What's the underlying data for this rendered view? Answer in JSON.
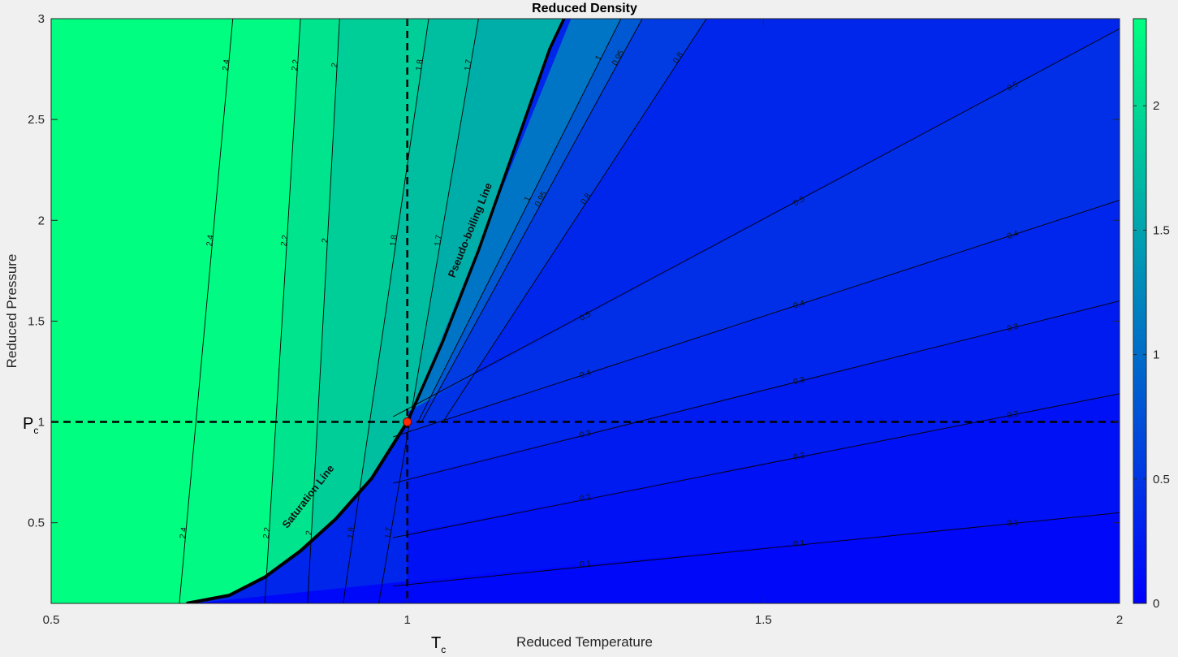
{
  "chart_data": {
    "type": "heatmap",
    "title": "Reduced Density",
    "xlabel": "Reduced Temperature",
    "ylabel": "Reduced Pressure",
    "xlim": [
      0.5,
      2
    ],
    "ylim": [
      0.1,
      3
    ],
    "x_ticks": [
      "0.5",
      "1",
      "1.5",
      "2"
    ],
    "y_ticks": [
      "0.5",
      "1",
      "1.5",
      "2",
      "2.5",
      "3"
    ],
    "colorbar": {
      "ticks": [
        "0",
        "0.5",
        "1",
        "1.5",
        "2"
      ],
      "range": [
        0,
        2.35
      ],
      "colormap": [
        "#0000ff",
        "#00ff80"
      ]
    },
    "critical_point": {
      "Tr": 1,
      "Pr": 1,
      "color": "#ff2a00"
    },
    "markers": {
      "Pc": "P",
      "Pc_sub": "c",
      "Tc": "T",
      "Tc_sub": "c"
    },
    "annotations": [
      "Saturation Line",
      "Pseudo-boiling Line"
    ],
    "liquid_contours": [
      {
        "level": 2.4,
        "x_at_p0": 0.68,
        "x_at_p3": 0.755
      },
      {
        "level": 2.2,
        "x_at_p0": 0.8,
        "x_at_p3": 0.85
      },
      {
        "level": 2.0,
        "x_at_p0": 0.86,
        "x_at_p3": 0.905
      },
      {
        "level": 1.8,
        "x_at_p0": 0.91,
        "x_at_p3": 1.03
      },
      {
        "level": 1.7,
        "x_at_p0": 0.96,
        "x_at_p3": 1.1
      }
    ],
    "vapor_contours": [
      {
        "level": 0.1,
        "p_at_t1": 0.21,
        "p_at_t2": 0.55
      },
      {
        "level": 0.2,
        "p_at_t1": 0.45,
        "p_at_t2": 1.14
      },
      {
        "level": 0.3,
        "p_at_t1": 0.72,
        "p_at_t2": 1.6
      },
      {
        "level": 0.4,
        "p_at_t1": 0.95,
        "p_at_t2": 2.1
      },
      {
        "level": 0.5,
        "p_at_t1": 1.05,
        "p_at_t2": 2.95
      }
    ],
    "supercritical_contours": [
      {
        "level": 0.8,
        "x_at_p1": 1.05,
        "x_at_p3": 1.42
      },
      {
        "level": 0.95,
        "x_at_p1": 1.02,
        "x_at_p3": 1.33
      },
      {
        "level": 1.0,
        "x_at_p1": 1.015,
        "x_at_p3": 1.3
      }
    ],
    "saturation_line": [
      [
        0.69,
        0.1
      ],
      [
        0.75,
        0.14
      ],
      [
        0.8,
        0.23
      ],
      [
        0.85,
        0.36
      ],
      [
        0.9,
        0.52
      ],
      [
        0.95,
        0.72
      ],
      [
        1.0,
        1.0
      ]
    ],
    "pseudo_boiling_line": [
      [
        1.0,
        1.0
      ],
      [
        1.05,
        1.4
      ],
      [
        1.1,
        1.85
      ],
      [
        1.15,
        2.35
      ],
      [
        1.2,
        2.85
      ],
      [
        1.22,
        3.0
      ]
    ]
  }
}
